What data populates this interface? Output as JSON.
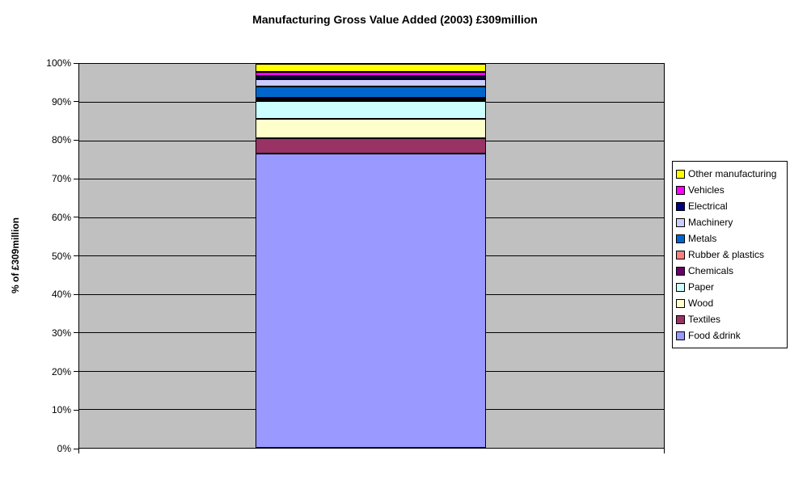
{
  "title": "Manufacturing Gross Value Added (2003) £309million",
  "y_axis": {
    "label": "% of £309million",
    "tick_labels": [
      "0%",
      "10%",
      "20%",
      "30%",
      "40%",
      "50%",
      "60%",
      "70%",
      "80%",
      "90%",
      "100%"
    ]
  },
  "legend": {
    "position": "right",
    "entries": [
      "Other manufacturing",
      "Vehicles",
      "Electrical",
      "Machinery",
      "Metals",
      "Rubber & plastics",
      "Chemicals",
      "Paper",
      "Wood",
      "Textiles",
      "Food &drink"
    ]
  },
  "colors": {
    "plot_background": "#C0C0C0",
    "chart_background": "#FFFFFF",
    "gridline": "#000000",
    "segment_outline": "#000000"
  },
  "chart_data": {
    "type": "bar",
    "subtype": "stacked-100-percent-column",
    "title": "Manufacturing Gross Value Added (2003) £309million",
    "xlabel": "",
    "ylabel": "% of £309million",
    "ylim": [
      0,
      100
    ],
    "grid": true,
    "legend_position": "right",
    "categories": [
      ""
    ],
    "series": [
      {
        "name": "Food &drink",
        "value": 76.6,
        "color": "#9999FF"
      },
      {
        "name": "Textiles",
        "value": 4.0,
        "color": "#993366"
      },
      {
        "name": "Wood",
        "value": 5.2,
        "color": "#FFFFCC"
      },
      {
        "name": "Paper",
        "value": 4.5,
        "color": "#CCFFFF"
      },
      {
        "name": "Chemicals",
        "value": 0.4,
        "color": "#660066"
      },
      {
        "name": "Rubber & plastics",
        "value": 0.4,
        "color": "#FF8080"
      },
      {
        "name": "Metals",
        "value": 3.0,
        "color": "#0066CC"
      },
      {
        "name": "Machinery",
        "value": 1.8,
        "color": "#CCCCFF"
      },
      {
        "name": "Electrical",
        "value": 0.9,
        "color": "#000080"
      },
      {
        "name": "Vehicles",
        "value": 1.1,
        "color": "#FF00FF"
      },
      {
        "name": "Other manufacturing",
        "value": 2.1,
        "color": "#FFFF00"
      }
    ]
  }
}
